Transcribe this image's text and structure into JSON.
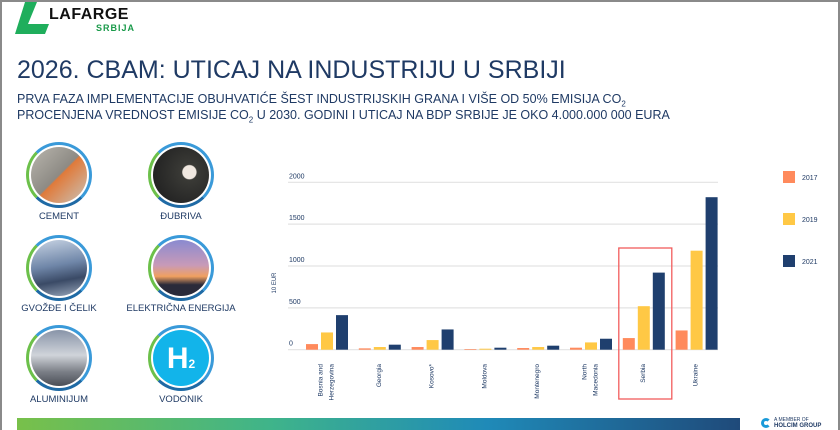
{
  "logo": {
    "brand": "LAFARGE",
    "sub": "SRBIJA",
    "member_line1": "A MEMBER OF",
    "member_line2": "HOLCIM GROUP"
  },
  "title": "2026. CBAM: UTICAJ NA INDUSTRIJU U SRBIJI",
  "subtitle1": {
    "text": "PRVA FAZA IMPLEMENTACIJE OBUHVATIĆE ŠEST INDUSTRIJSKIH GRANA I VIŠE OD 50% EMISIJA CO",
    "sub": "2"
  },
  "subtitle2": {
    "a": "PROCENJENA VREDNOST EMISIJE CO",
    "sub": "2",
    "b": " U 2030. GODINI I UTICAJ NA BDP SRBIJE JE OKO 4.000.000 000 EURA"
  },
  "industries": [
    {
      "label": "CEMENT",
      "icon": "cement-icon"
    },
    {
      "label": "ĐUBRIVA",
      "icon": "fertilizer-icon"
    },
    {
      "label": "GVOŽĐE I ČELIK",
      "icon": "steel-icon"
    },
    {
      "label": "ELEKTRIČNA ENERGIJA",
      "icon": "power-line-icon"
    },
    {
      "label": "ALUMINIJUM",
      "icon": "aluminium-icon"
    },
    {
      "label": "VODONIK",
      "icon": "hydrogen-icon",
      "glyph": "H",
      "glyph_sub": "2"
    }
  ],
  "chart_data": {
    "type": "bar",
    "ylabel": "10 EUR",
    "ylim": [
      0,
      2000
    ],
    "yticks": [
      0,
      500,
      1000,
      1500,
      2000
    ],
    "grid": true,
    "legend_position": "right",
    "categories": [
      "Bosnia and Herzegovina",
      "Georgia",
      "Kosovo*",
      "Moldova",
      "Montenegro",
      "North Macedonia",
      "Serbia",
      "Ukraine"
    ],
    "category_lines": [
      [
        "Bosnia and",
        "Herzegovina"
      ],
      [
        "Georgia"
      ],
      [
        "Kosovo*"
      ],
      [
        "Moldova"
      ],
      [
        "Montenegro"
      ],
      [
        "North",
        "Macedonia"
      ],
      [
        "Serbia"
      ],
      [
        "Ukraine"
      ]
    ],
    "highlighted": "Serbia",
    "highlight_color": "#f25c5c",
    "series": [
      {
        "name": "2017",
        "color": "#ff8a5c",
        "values": [
          67,
          16,
          32,
          8,
          20,
          24,
          139,
          230
        ]
      },
      {
        "name": "2019",
        "color": "#ffc845",
        "values": [
          206,
          32,
          115,
          12,
          32,
          87,
          520,
          1183
        ]
      },
      {
        "name": "2021",
        "color": "#1f3f6e",
        "values": [
          413,
          60,
          242,
          24,
          48,
          131,
          921,
          1822
        ]
      }
    ]
  }
}
